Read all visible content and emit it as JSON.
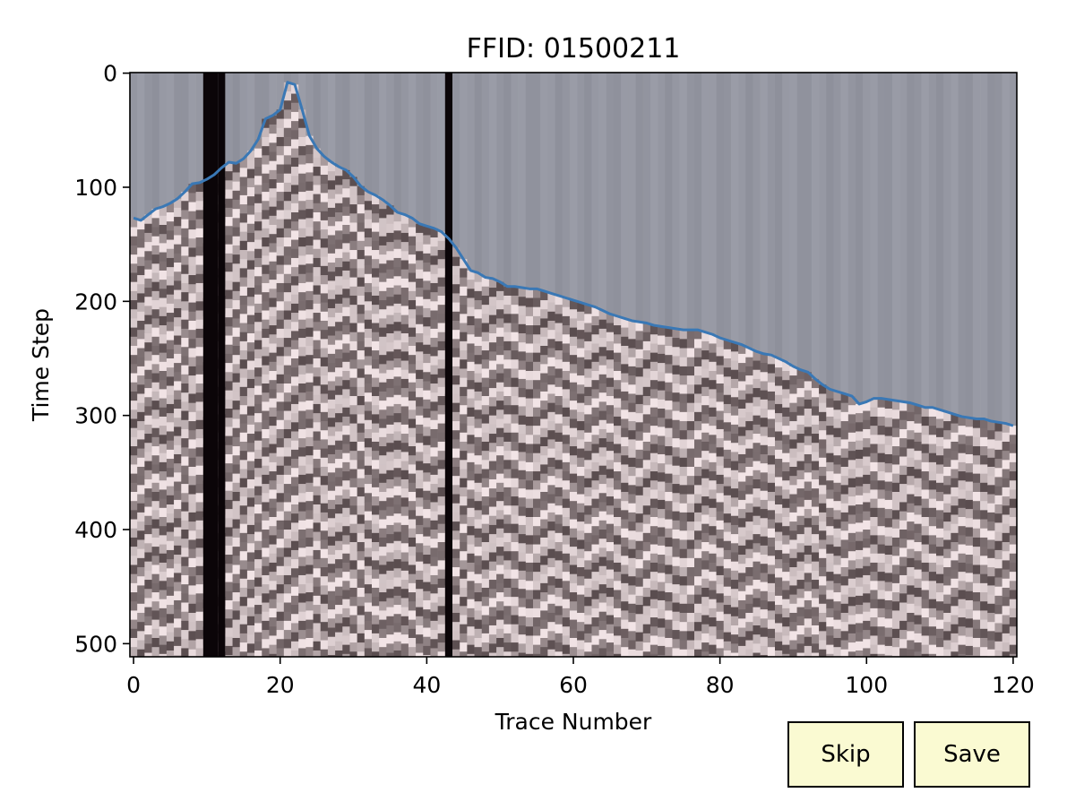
{
  "chart_data": {
    "type": "heatmap",
    "title": "FFID: 01500211",
    "xlabel": "Trace Number",
    "ylabel": "Time Step",
    "xlim": [
      -0.5,
      120.5
    ],
    "ylim": [
      511.5,
      -0.5
    ],
    "y_inverted": true,
    "xticks": [
      0,
      20,
      40,
      60,
      80,
      100,
      120
    ],
    "yticks": [
      0,
      100,
      200,
      300,
      400,
      500
    ],
    "colormap": [
      "#0b0508",
      "#5a4d4f",
      "#f2e4e6"
    ],
    "above_pick_color": "#999ba6",
    "dead_traces": [
      10,
      11,
      12,
      43
    ],
    "grid": false,
    "series": [
      {
        "type": "line",
        "color": "#3a78b5",
        "x": [
          0,
          1,
          2,
          3,
          4,
          5,
          6,
          7,
          8,
          9,
          10,
          11,
          12,
          13,
          14,
          15,
          16,
          17,
          18,
          19,
          20,
          21,
          22,
          23,
          24,
          25,
          26,
          27,
          28,
          29,
          30,
          31,
          32,
          33,
          34,
          35,
          36,
          37,
          38,
          39,
          40,
          41,
          42,
          43,
          44,
          45,
          46,
          47,
          48,
          49,
          50,
          51,
          52,
          53,
          54,
          55,
          56,
          57,
          58,
          59,
          60,
          61,
          62,
          63,
          64,
          65,
          66,
          67,
          68,
          69,
          70,
          71,
          72,
          73,
          74,
          75,
          76,
          77,
          78,
          79,
          80,
          81,
          82,
          83,
          84,
          85,
          86,
          87,
          88,
          89,
          90,
          91,
          92,
          93,
          94,
          95,
          96,
          97,
          98,
          99,
          100,
          101,
          102,
          103,
          104,
          105,
          106,
          107,
          108,
          109,
          110,
          111,
          112,
          113,
          114,
          115,
          116,
          117,
          118,
          119,
          120
        ],
        "y": [
          127,
          129,
          124,
          119,
          117,
          114,
          110,
          104,
          97,
          96,
          93,
          89,
          83,
          78,
          79,
          75,
          68,
          58,
          40,
          37,
          32,
          8,
          10,
          32,
          55,
          66,
          73,
          78,
          82,
          85,
          91,
          99,
          104,
          107,
          111,
          116,
          122,
          124,
          127,
          132,
          134,
          136,
          139,
          145,
          153,
          163,
          173,
          175,
          179,
          180,
          183,
          187,
          187,
          188,
          189,
          189,
          191,
          193,
          195,
          197,
          199,
          201,
          203,
          205,
          208,
          211,
          213,
          215,
          217,
          218,
          219,
          221,
          222,
          223,
          224,
          225,
          225,
          225,
          227,
          229,
          232,
          234,
          236,
          238,
          241,
          244,
          246,
          247,
          250,
          253,
          257,
          260,
          262,
          268,
          273,
          277,
          279,
          281,
          283,
          290,
          288,
          285,
          285,
          286,
          287,
          288,
          289,
          291,
          293,
          293,
          295,
          297,
          299,
          301,
          302,
          303,
          303,
          305,
          306,
          307,
          309
        ]
      }
    ]
  },
  "buttons": {
    "skip_label": "Skip",
    "save_label": "Save"
  }
}
